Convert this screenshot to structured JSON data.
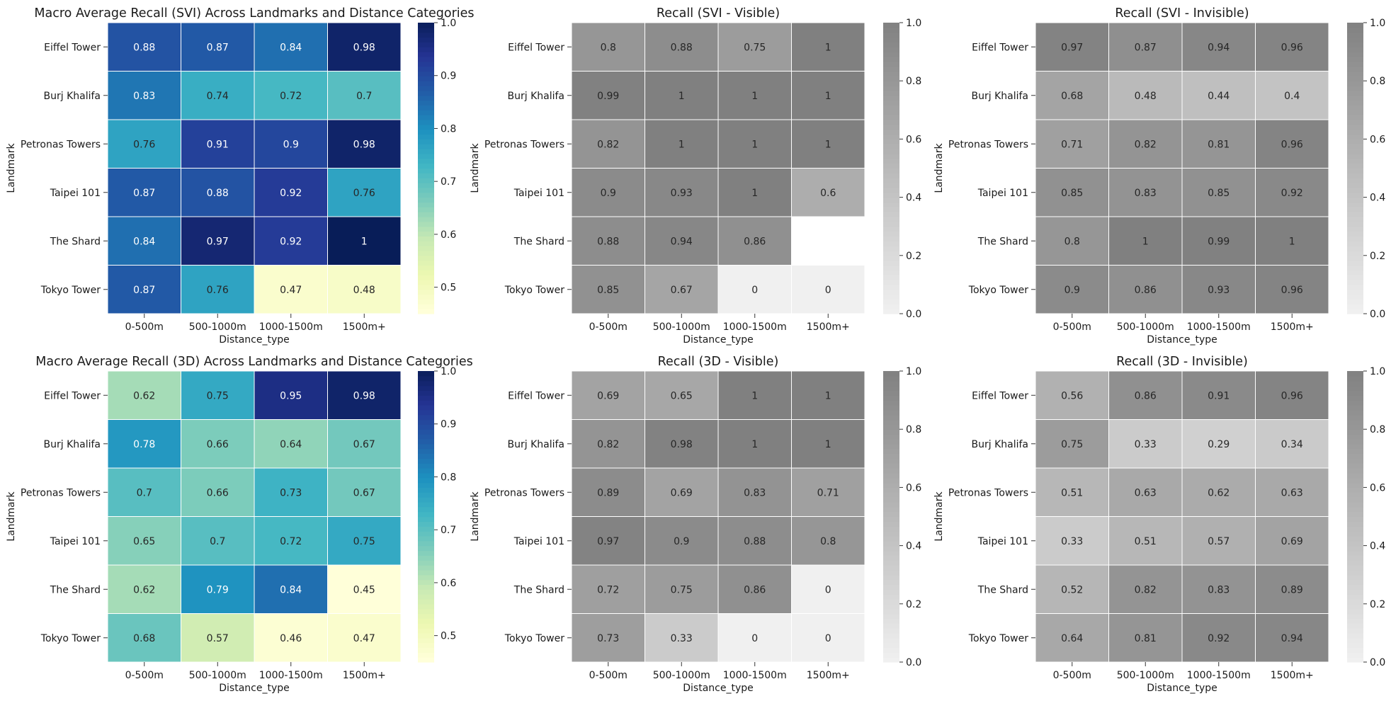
{
  "chart_data": [
    {
      "type": "heatmap",
      "title": "Macro Average Recall (SVI) Across Landmarks and Distance Categories",
      "xlabel": "Distance_type",
      "ylabel": "Landmark",
      "x": [
        "0-500m",
        "500-1000m",
        "1000-1500m",
        "1500m+"
      ],
      "y": [
        "Eiffel Tower",
        "Burj Khalifa",
        "Petronas Towers",
        "Taipei 101",
        "The Shard",
        "Tokyo Tower"
      ],
      "values": [
        [
          0.88,
          0.87,
          0.84,
          0.98
        ],
        [
          0.83,
          0.74,
          0.72,
          0.7
        ],
        [
          0.76,
          0.91,
          0.9,
          0.98
        ],
        [
          0.87,
          0.88,
          0.92,
          0.76
        ],
        [
          0.84,
          0.97,
          0.92,
          1
        ],
        [
          0.87,
          0.76,
          0.47,
          0.48
        ]
      ],
      "colormap": "YlGnBu",
      "vmin": 0.45,
      "vmax": 1.0,
      "colorbar_ticks": [
        "0.5",
        "0.6",
        "0.7",
        "0.8",
        "0.9",
        "1.0"
      ]
    },
    {
      "type": "heatmap",
      "title": "Recall (SVI - Visible)",
      "xlabel": "Distance_type",
      "ylabel": "Landmark",
      "x": [
        "0-500m",
        "500-1000m",
        "1000-1500m",
        "1500m+"
      ],
      "y": [
        "Eiffel Tower",
        "Burj Khalifa",
        "Petronas Towers",
        "Taipei 101",
        "The Shard",
        "Tokyo Tower"
      ],
      "values": [
        [
          0.8,
          0.88,
          0.75,
          1
        ],
        [
          0.99,
          1,
          1,
          1
        ],
        [
          0.82,
          1,
          1,
          1
        ],
        [
          0.9,
          0.93,
          1,
          0.6
        ],
        [
          0.88,
          0.94,
          0.86,
          null
        ],
        [
          0.85,
          0.67,
          0,
          0
        ]
      ],
      "colormap": "gray",
      "vmin": 0,
      "vmax": 1.0,
      "colorbar_ticks": [
        "0.0",
        "0.2",
        "0.4",
        "0.6",
        "0.8",
        "1.0"
      ]
    },
    {
      "type": "heatmap",
      "title": "Recall (SVI - Invisible)",
      "xlabel": "Distance_type",
      "ylabel": "Landmark",
      "x": [
        "0-500m",
        "500-1000m",
        "1000-1500m",
        "1500m+"
      ],
      "y": [
        "Eiffel Tower",
        "Burj Khalifa",
        "Petronas Towers",
        "Taipei 101",
        "The Shard",
        "Tokyo Tower"
      ],
      "values": [
        [
          0.97,
          0.87,
          0.94,
          0.96
        ],
        [
          0.68,
          0.48,
          0.44,
          0.4
        ],
        [
          0.71,
          0.82,
          0.81,
          0.96
        ],
        [
          0.85,
          0.83,
          0.85,
          0.92
        ],
        [
          0.8,
          1,
          0.99,
          1
        ],
        [
          0.9,
          0.86,
          0.93,
          0.96
        ]
      ],
      "colormap": "gray",
      "vmin": 0,
      "vmax": 1.0,
      "colorbar_ticks": [
        "0.0",
        "0.2",
        "0.4",
        "0.6",
        "0.8",
        "1.0"
      ]
    },
    {
      "type": "heatmap",
      "title": "Macro Average Recall (3D) Across Landmarks and Distance Categories",
      "xlabel": "Distance_type",
      "ylabel": "Landmark",
      "x": [
        "0-500m",
        "500-1000m",
        "1000-1500m",
        "1500m+"
      ],
      "y": [
        "Eiffel Tower",
        "Burj Khalifa",
        "Petronas Towers",
        "Taipei 101",
        "The Shard",
        "Tokyo Tower"
      ],
      "values": [
        [
          0.62,
          0.75,
          0.95,
          0.98
        ],
        [
          0.78,
          0.66,
          0.64,
          0.67
        ],
        [
          0.7,
          0.66,
          0.73,
          0.67
        ],
        [
          0.65,
          0.7,
          0.72,
          0.75
        ],
        [
          0.62,
          0.79,
          0.84,
          0.45
        ],
        [
          0.68,
          0.57,
          0.46,
          0.47
        ]
      ],
      "colormap": "YlGnBu",
      "vmin": 0.45,
      "vmax": 1.0,
      "colorbar_ticks": [
        "0.5",
        "0.6",
        "0.7",
        "0.8",
        "0.9",
        "1.0"
      ]
    },
    {
      "type": "heatmap",
      "title": "Recall (3D - Visible)",
      "xlabel": "Distance_type",
      "ylabel": "Landmark",
      "x": [
        "0-500m",
        "500-1000m",
        "1000-1500m",
        "1500m+"
      ],
      "y": [
        "Eiffel Tower",
        "Burj Khalifa",
        "Petronas Towers",
        "Taipei 101",
        "The Shard",
        "Tokyo Tower"
      ],
      "values": [
        [
          0.69,
          0.65,
          1,
          1
        ],
        [
          0.82,
          0.98,
          1,
          1
        ],
        [
          0.89,
          0.69,
          0.83,
          0.71
        ],
        [
          0.97,
          0.9,
          0.88,
          0.8
        ],
        [
          0.72,
          0.75,
          0.86,
          0
        ],
        [
          0.73,
          0.33,
          0,
          0
        ]
      ],
      "colormap": "gray",
      "vmin": 0,
      "vmax": 1.0,
      "colorbar_ticks": [
        "0.0",
        "0.2",
        "0.4",
        "0.6",
        "0.8",
        "1.0"
      ]
    },
    {
      "type": "heatmap",
      "title": "Recall (3D - Invisible)",
      "xlabel": "Distance_type",
      "ylabel": "Landmark",
      "x": [
        "0-500m",
        "500-1000m",
        "1000-1500m",
        "1500m+"
      ],
      "y": [
        "Eiffel Tower",
        "Burj Khalifa",
        "Petronas Towers",
        "Taipei 101",
        "The Shard",
        "Tokyo Tower"
      ],
      "values": [
        [
          0.56,
          0.86,
          0.91,
          0.96
        ],
        [
          0.75,
          0.33,
          0.29,
          0.34
        ],
        [
          0.51,
          0.63,
          0.62,
          0.63
        ],
        [
          0.33,
          0.51,
          0.57,
          0.69
        ],
        [
          0.52,
          0.82,
          0.83,
          0.89
        ],
        [
          0.64,
          0.81,
          0.92,
          0.94
        ]
      ],
      "colormap": "gray",
      "vmin": 0,
      "vmax": 1.0,
      "colorbar_ticks": [
        "0.0",
        "0.2",
        "0.4",
        "0.6",
        "0.8",
        "1.0"
      ]
    }
  ]
}
